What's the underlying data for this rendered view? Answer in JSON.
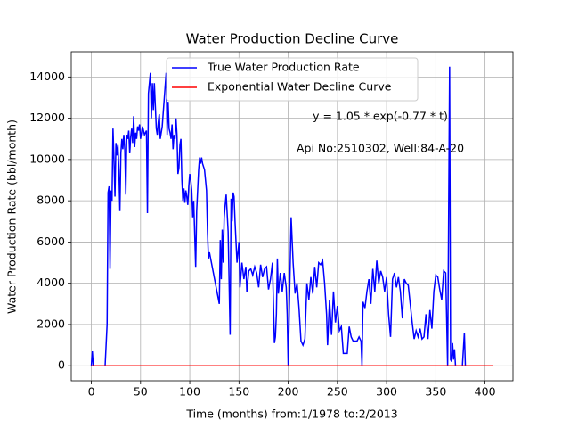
{
  "chart_data": {
    "type": "line",
    "title": "Water Production Decline Curve",
    "xlabel": "Time (months) from:1/1978 to:2/2013",
    "ylabel": "Water Production Rate (bbl/month)",
    "annotations": [
      "y = 1.05 * exp(-0.77 * t)",
      "Api No:2510302, Well:84-A-20"
    ],
    "xlim": [
      -20.4,
      428.4
    ],
    "ylim": [
      -725,
      15225
    ],
    "xticks": [
      0,
      50,
      100,
      150,
      200,
      250,
      300,
      350,
      400
    ],
    "yticks": [
      0,
      2000,
      4000,
      6000,
      8000,
      10000,
      12000,
      14000
    ],
    "grid": true,
    "legend": "upper center",
    "series": [
      {
        "name": "True Water Production Rate",
        "color": "#0000ff",
        "x": [
          0,
          1,
          2,
          14,
          16,
          17,
          18,
          19,
          20,
          21,
          22,
          23,
          24,
          25,
          26,
          27,
          28,
          29,
          30,
          31,
          32,
          33,
          34,
          35,
          36,
          37,
          38,
          39,
          40,
          41,
          42,
          43,
          44,
          45,
          46,
          47,
          48,
          49,
          50,
          52,
          54,
          56,
          57,
          58,
          60,
          61,
          62,
          63,
          64,
          65,
          66,
          67,
          68,
          69,
          70,
          72,
          76,
          77,
          78,
          79,
          80,
          81,
          82,
          83,
          84,
          85,
          86,
          87,
          88,
          89,
          90,
          91,
          92,
          93,
          94,
          95,
          96,
          97,
          98,
          99,
          100,
          101,
          102,
          103,
          104,
          106,
          107,
          109,
          110,
          111,
          112,
          113,
          115,
          116,
          117,
          118,
          119,
          120,
          130,
          131,
          132,
          133,
          134,
          135,
          136,
          137,
          139,
          141,
          142,
          143,
          144,
          145,
          146,
          148,
          150,
          151,
          153,
          155,
          157,
          158,
          160,
          162,
          164,
          166,
          168,
          170,
          172,
          174,
          176,
          178,
          180,
          182,
          184,
          186,
          187,
          188,
          189,
          190,
          192,
          194,
          196,
          198,
          199,
          200,
          203,
          205,
          207,
          209,
          211,
          213,
          215,
          217,
          219,
          221,
          223,
          225,
          227,
          229,
          231,
          233,
          235,
          237,
          239,
          240,
          242,
          244,
          246,
          248,
          250,
          252,
          254,
          256,
          260,
          262,
          264,
          266,
          270,
          272,
          274,
          275,
          276,
          278,
          280,
          282,
          284,
          286,
          288,
          290,
          292,
          294,
          296,
          298,
          300,
          302,
          304,
          306,
          308,
          310,
          312,
          314,
          316,
          318,
          320,
          322,
          324,
          326,
          328,
          330,
          332,
          334,
          336,
          338,
          340,
          342,
          344,
          346,
          348,
          350,
          352,
          354,
          356,
          358,
          360,
          362,
          364,
          365,
          366,
          367,
          368,
          369,
          370,
          377,
          379,
          380,
          408
        ],
        "values": [
          0,
          700,
          0,
          0,
          2000,
          8400,
          8700,
          4700,
          8500,
          8000,
          11500,
          10000,
          8200,
          10800,
          10200,
          10700,
          9500,
          7500,
          10300,
          11000,
          10500,
          11200,
          10500,
          8300,
          11200,
          11000,
          11400,
          10300,
          11100,
          11500,
          10800,
          12100,
          10600,
          11300,
          11000,
          11600,
          11400,
          11700,
          11000,
          11600,
          11200,
          11400,
          7400,
          13200,
          14200,
          12000,
          13700,
          12400,
          13700,
          12600,
          11500,
          11200,
          11800,
          12200,
          11000,
          11600,
          14200,
          11200,
          12800,
          11500,
          11300,
          11000,
          11700,
          10500,
          11200,
          11000,
          12000,
          11200,
          9300,
          9600,
          10700,
          11000,
          9000,
          8000,
          8600,
          7900,
          8500,
          8200,
          7800,
          8700,
          9300,
          9000,
          8500,
          7200,
          8000,
          4800,
          7500,
          9500,
          10100,
          9800,
          10100,
          9800,
          9500,
          9000,
          8500,
          6500,
          5200,
          5500,
          3000,
          6100,
          4200,
          6600,
          5000,
          7200,
          7800,
          8300,
          6500,
          1500,
          8100,
          7000,
          8400,
          8200,
          7000,
          5000,
          6000,
          3800,
          5000,
          4200,
          4800,
          3600,
          4600,
          4700,
          4400,
          4800,
          4500,
          3800,
          4900,
          4300,
          4700,
          4800,
          3700,
          4200,
          5000,
          1100,
          1400,
          2500,
          5200,
          3500,
          4500,
          3600,
          4500,
          3800,
          2500,
          0,
          7200,
          5000,
          3500,
          4000,
          2800,
          1200,
          1000,
          1300,
          4000,
          3200,
          4300,
          3500,
          4800,
          3800,
          5000,
          4900,
          5100,
          4000,
          2500,
          1000,
          3200,
          1500,
          3600,
          2100,
          2900,
          1700,
          1900,
          600,
          600,
          1900,
          1400,
          1200,
          1200,
          1400,
          1200,
          0,
          3100,
          2800,
          3600,
          4200,
          3000,
          4700,
          3600,
          5100,
          4000,
          4600,
          4300,
          3600,
          4300,
          2500,
          1400,
          4200,
          4500,
          3800,
          4300,
          3600,
          2300,
          4200,
          4000,
          3900,
          3000,
          2100,
          1300,
          1700,
          1400,
          1800,
          1300,
          1400,
          2500,
          1300,
          2700,
          1800,
          3600,
          4400,
          4300,
          3700,
          3200,
          4600,
          4500,
          0,
          14500,
          300,
          200,
          1100,
          300,
          800,
          0,
          0,
          1600,
          0,
          0
        ]
      },
      {
        "name": "Exponential Water Decline Curve",
        "color": "#ff0000",
        "x": [
          0,
          408
        ],
        "values": [
          1.05,
          0
        ]
      }
    ]
  }
}
